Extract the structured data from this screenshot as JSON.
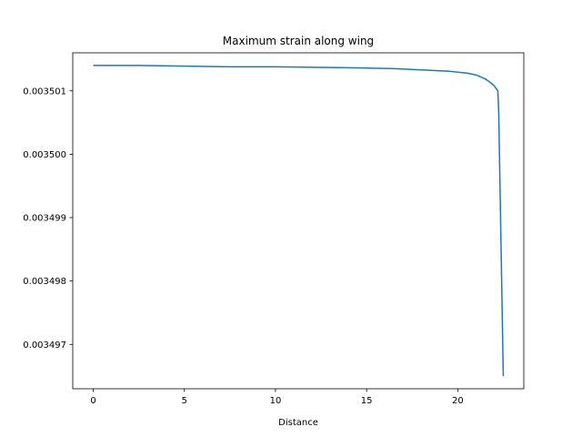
{
  "chart_data": {
    "type": "line",
    "title": "Maximum strain along wing",
    "xlabel": "Distance",
    "ylabel": "",
    "xlim": [
      -1.125,
      23.625
    ],
    "ylim": [
      0.0034963,
      0.0035016
    ],
    "xticks": [
      0,
      5,
      10,
      15,
      20
    ],
    "xtick_labels": [
      "0",
      "5",
      "10",
      "15",
      "20"
    ],
    "yticks": [
      0.003497,
      0.003498,
      0.003499,
      0.0035,
      0.003501
    ],
    "ytick_labels": [
      "0.003497",
      "0.003498",
      "0.003499",
      "0.003500",
      "0.003501"
    ],
    "grid": false,
    "legend": "none",
    "series": [
      {
        "color": "#1f77b4",
        "x": [
          0,
          2.5,
          5,
          7.5,
          10,
          12.5,
          15,
          16.5,
          18,
          19.5,
          20.5,
          21,
          21.5,
          21.8,
          22,
          22.2,
          22.25,
          22.5
        ],
        "y": [
          0.0035014,
          0.0035014,
          0.00350139,
          0.00350138,
          0.00350138,
          0.00350137,
          0.00350136,
          0.00350135,
          0.00350133,
          0.00350131,
          0.00350128,
          0.00350125,
          0.00350119,
          0.00350113,
          0.00350108,
          0.003501,
          0.00350066,
          0.0034965
        ]
      }
    ]
  }
}
